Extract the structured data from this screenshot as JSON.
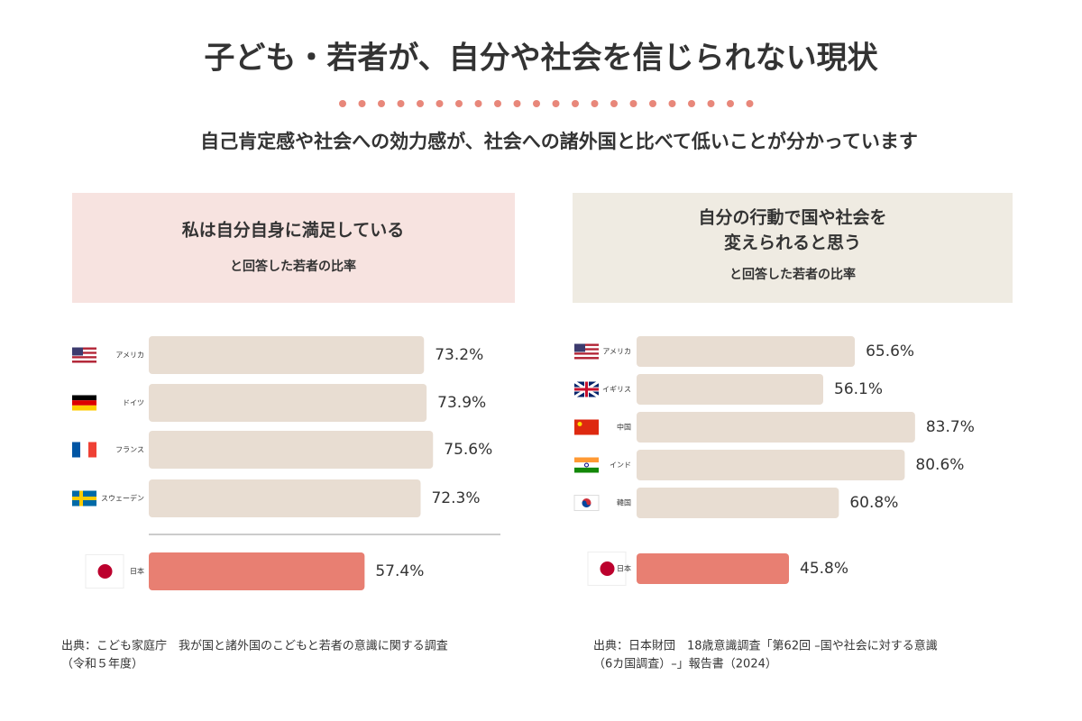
{
  "header": {
    "title": "子ども・若者が、自分や社会を信じられない現状",
    "subtitle": "自己肯定感や社会への効力感が、社会への諸外国と比べて低いことが分かっています"
  },
  "chart_data": [
    {
      "type": "bar",
      "orientation": "horizontal",
      "title": [
        "私は自分自身に満足している"
      ],
      "subtitle": "と回答した若者の比率",
      "categories": [
        "アメリカ",
        "ドイツ",
        "フランス",
        "スウェーデン",
        "日本"
      ],
      "values": [
        73.2,
        73.9,
        75.6,
        72.3,
        57.4
      ],
      "value_labels": [
        "73.2%",
        "73.9%",
        "75.6%",
        "72.3%",
        "57.4%"
      ],
      "colors": [
        "#e8ddd2",
        "#e8ddd2",
        "#e8ddd2",
        "#e8ddd2",
        "#e87f72"
      ],
      "source": [
        "出典：こども家庭庁　我が国と諸外国のこどもと若者の意識に関する調査",
        "（令和５年度）"
      ]
    },
    {
      "type": "bar",
      "orientation": "horizontal",
      "title": [
        "自分の行動で国や社会を",
        "変えられると思う"
      ],
      "subtitle": "と回答した若者の比率",
      "categories": [
        "アメリカ",
        "イギリス",
        "中国",
        "インド",
        "韓国",
        "日本"
      ],
      "values": [
        65.6,
        56.1,
        83.7,
        80.6,
        60.8,
        45.8
      ],
      "value_labels": [
        "65.6%",
        "56.1%",
        "83.7%",
        "80.6%",
        "60.8%",
        "45.8%"
      ],
      "colors": [
        "#e8ddd2",
        "#e8ddd2",
        "#e8ddd2",
        "#e8ddd2",
        "#e8ddd2",
        "#e87f72"
      ],
      "source": [
        "出典：日本財団　18歳意識調査「第62回 –国や社会に対する意識",
        "（6カ国調査）–」報告書（2024）"
      ]
    }
  ]
}
